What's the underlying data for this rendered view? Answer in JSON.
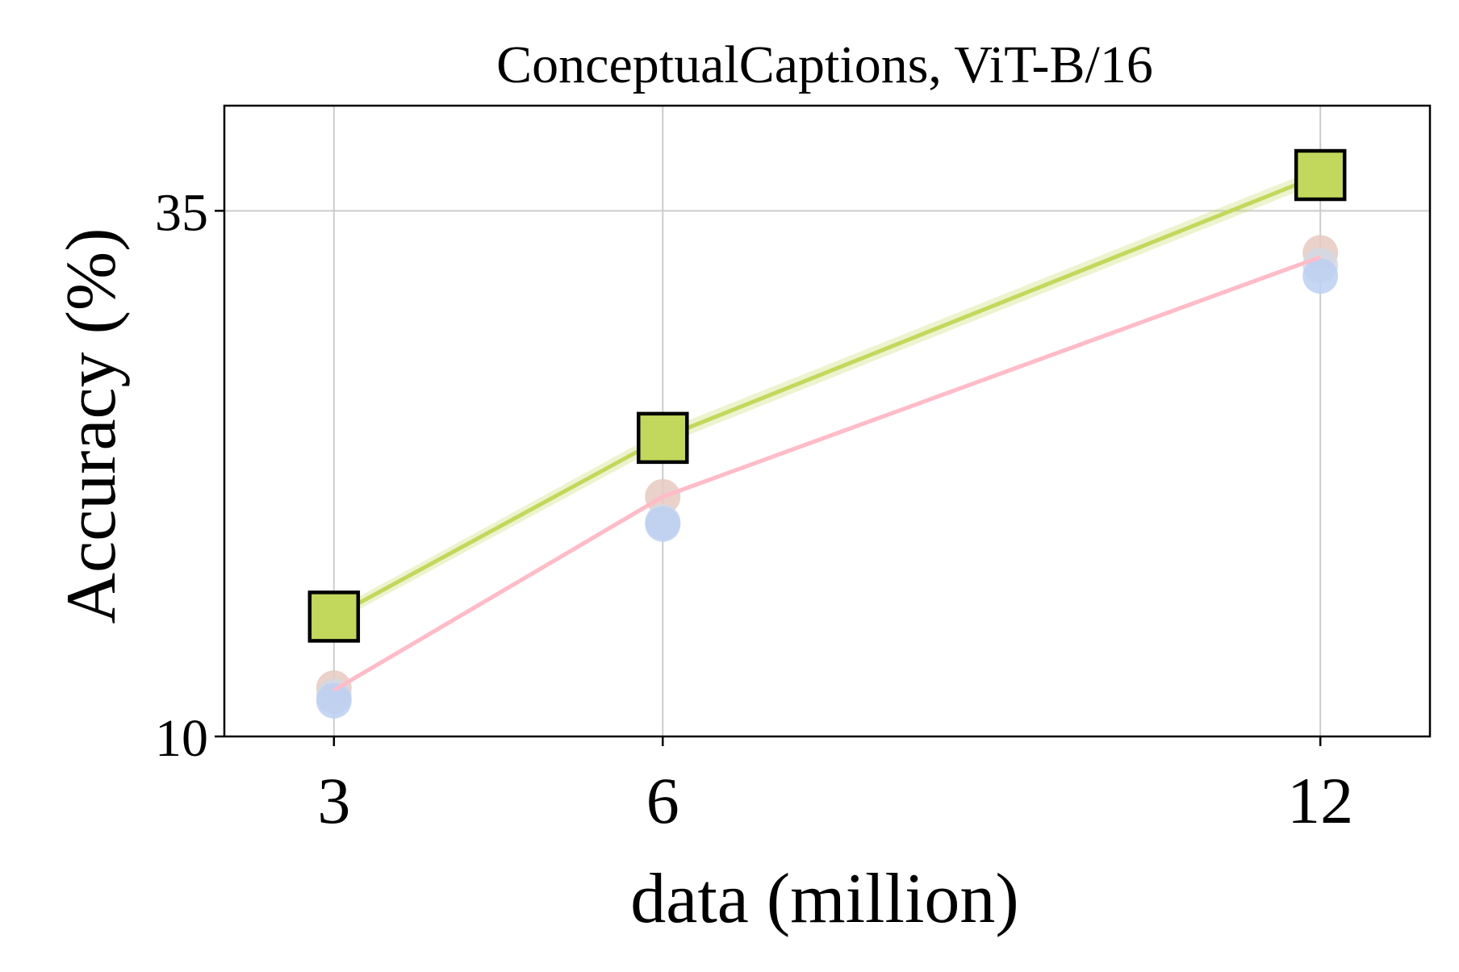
{
  "chart_data": {
    "type": "line",
    "title": "ConceptualCaptions, ViT-B/16",
    "xlabel": "data (million)",
    "ylabel": "Accuracy (%)",
    "x_ticks": [
      3,
      6,
      12
    ],
    "x_tick_labels": [
      "3",
      "6",
      "12"
    ],
    "y_ticks": [
      10,
      35
    ],
    "y_tick_labels": [
      "10",
      "35"
    ],
    "xlim": [
      2.0,
      13.0
    ],
    "ylim": [
      10,
      40
    ],
    "grid": true,
    "legend": "none",
    "series": [
      {
        "marker": "square",
        "color": "#c2d85c",
        "x": [
          3,
          6,
          12
        ],
        "y": [
          15.7,
          24.2,
          36.7
        ],
        "band": [
          0.3,
          0.35,
          0.35
        ]
      },
      {
        "marker": "none",
        "color": "#ffbcc8",
        "x": [
          3,
          6,
          12
        ],
        "y": [
          12.2,
          21.4,
          32.8
        ]
      },
      {
        "marker": "circle",
        "color": "#e6c9c0",
        "x": [
          3,
          6,
          12
        ],
        "y": [
          12.3,
          21.4,
          33.0
        ]
      },
      {
        "marker": "circle",
        "color": "#d2d9e4",
        "x": [
          3,
          6,
          12
        ],
        "y": [
          11.9,
          20.2,
          32.4
        ]
      },
      {
        "marker": "circle",
        "color": "#bcd0f2",
        "x": [
          3,
          6,
          12
        ],
        "y": [
          11.7,
          20.1,
          31.9
        ]
      }
    ]
  }
}
